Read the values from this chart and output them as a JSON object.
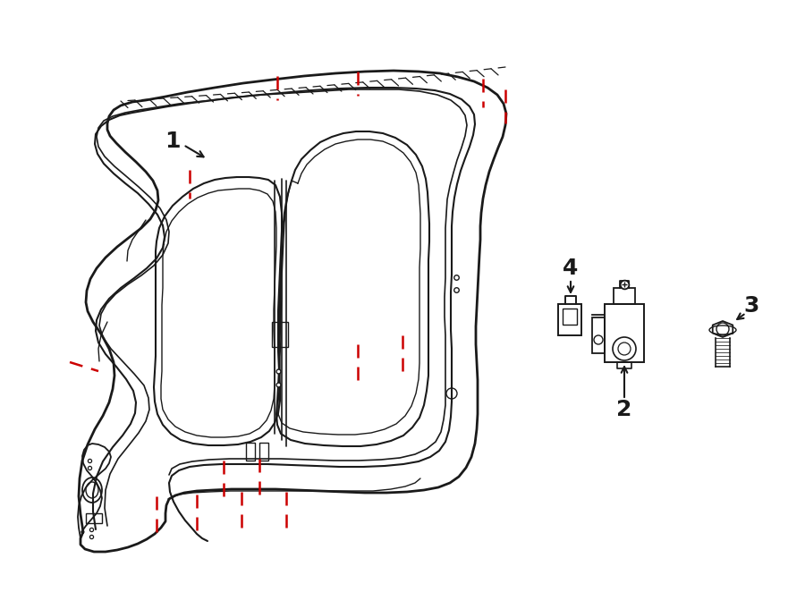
{
  "background_color": "#ffffff",
  "line_color": "#1a1a1a",
  "red_dash_color": "#cc0000",
  "fig_width": 9.0,
  "fig_height": 6.62,
  "dpi": 100
}
